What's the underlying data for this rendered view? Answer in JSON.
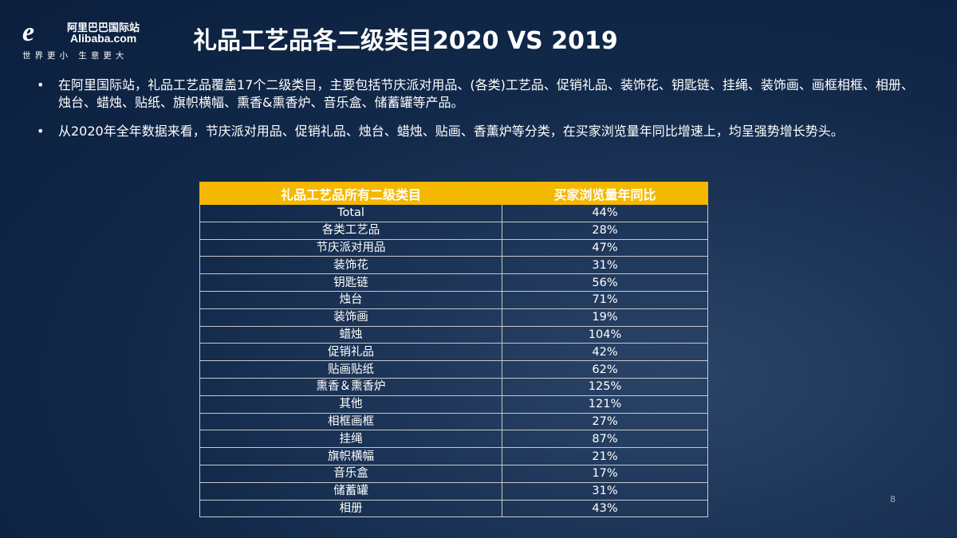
{
  "logo": {
    "cn": "阿里巴巴国际站",
    "en": "Alibaba.com",
    "slogan": "世界更小 生意更大"
  },
  "title": "礼品工艺品各二级类目2020 VS 2019",
  "bullets": [
    "在阿里国际站，礼品工艺品覆盖17个二级类目，主要包括节庆派对用品、(各类)工艺品、促销礼品、装饰花、钥匙链、挂绳、装饰画、画框相框、相册、烛台、蜡烛、贴纸、旗帜横幅、熏香&熏香炉、音乐盒、储蓄罐等产品。",
    "从2020年全年数据来看，节庆派对用品、促销礼品、烛台、蜡烛、贴画、香薰炉等分类，在买家浏览量年同比增速上，均呈强势增长势头。"
  ],
  "table": {
    "headers": [
      "礼品工艺品所有二级类目",
      "买家浏览量年同比"
    ],
    "rows": [
      [
        "Total",
        "44%"
      ],
      [
        "各类工艺品",
        "28%"
      ],
      [
        "节庆派对用品",
        "47%"
      ],
      [
        "装饰花",
        "31%"
      ],
      [
        "钥匙链",
        "56%"
      ],
      [
        "烛台",
        "71%"
      ],
      [
        "装饰画",
        "19%"
      ],
      [
        "蜡烛",
        "104%"
      ],
      [
        "促销礼品",
        "42%"
      ],
      [
        "贴画贴纸",
        "62%"
      ],
      [
        "熏香＆熏香炉",
        "125%"
      ],
      [
        "其他",
        "121%"
      ],
      [
        "相框画框",
        "27%"
      ],
      [
        "挂绳",
        "87%"
      ],
      [
        "旗帜横幅",
        "21%"
      ],
      [
        "音乐盒",
        "17%"
      ],
      [
        "储蓄罐",
        "31%"
      ],
      [
        "相册",
        "43%"
      ]
    ]
  },
  "page_number": "8",
  "colors": {
    "background": "#12294a",
    "header": "#f5b800"
  }
}
